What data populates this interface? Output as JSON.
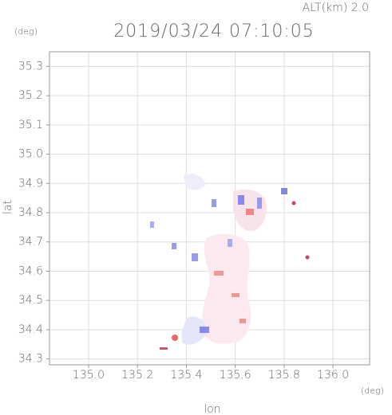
{
  "chart_data": {
    "type": "map",
    "title": "2019/03/24 07:10:05",
    "altitude_label": "ALT(km) 2.0",
    "y_unit": "(deg)",
    "x_unit": "(deg)",
    "xlabel": "lon",
    "ylabel": "lat",
    "xlim": [
      134.84,
      136.15
    ],
    "ylim": [
      34.28,
      35.35
    ],
    "xticks": [
      {
        "value": 135.0,
        "label": "135.0"
      },
      {
        "value": 135.2,
        "label": "135.2"
      },
      {
        "value": 135.4,
        "label": "135.4"
      },
      {
        "value": 135.6,
        "label": "135.6"
      },
      {
        "value": 135.8,
        "label": "135.8"
      },
      {
        "value": 136.0,
        "label": "136.0"
      }
    ],
    "yticks": [
      {
        "value": 34.3,
        "label": "34.3"
      },
      {
        "value": 34.4,
        "label": "34.4"
      },
      {
        "value": 34.5,
        "label": "34.5"
      },
      {
        "value": 34.6,
        "label": "34.6"
      },
      {
        "value": 34.7,
        "label": "34.7"
      },
      {
        "value": 34.8,
        "label": "34.8"
      },
      {
        "value": 34.9,
        "label": "34.9"
      },
      {
        "value": 35.0,
        "label": "35.0"
      },
      {
        "value": 35.1,
        "label": "35.1"
      },
      {
        "value": 35.2,
        "label": "35.2"
      },
      {
        "value": 35.3,
        "label": "35.3"
      }
    ],
    "grid": true
  }
}
